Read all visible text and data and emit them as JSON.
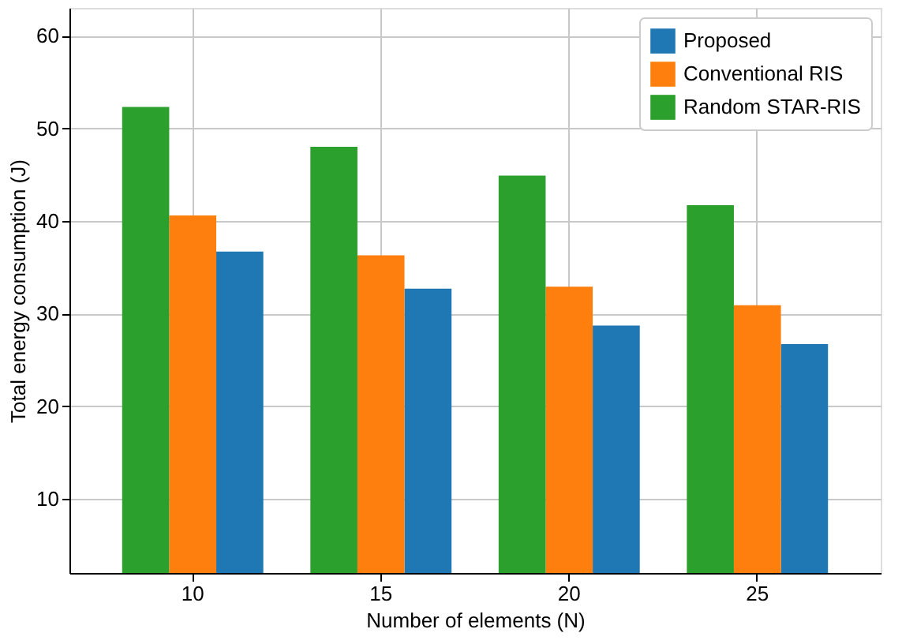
{
  "chart_data": {
    "type": "bar",
    "xlabel": "Number of elements (N)",
    "ylabel": "Total energy consumption (J)",
    "categories": [
      "10",
      "15",
      "20",
      "25"
    ],
    "series": [
      {
        "name": "Proposed",
        "color": "#1f77b4",
        "values": [
          36.7,
          32.7,
          28.7,
          26.7
        ]
      },
      {
        "name": "Conventional RIS",
        "color": "#ff7f0e",
        "values": [
          40.6,
          36.3,
          32.9,
          30.9
        ]
      },
      {
        "name": "Random STAR-RIS",
        "color": "#2ca02c",
        "values": [
          52.3,
          48.0,
          44.9,
          41.7
        ]
      }
    ],
    "ylim": [
      2,
      63
    ],
    "yticks": [
      10,
      20,
      30,
      40,
      50,
      60
    ],
    "grid": true,
    "legend": "top right"
  }
}
